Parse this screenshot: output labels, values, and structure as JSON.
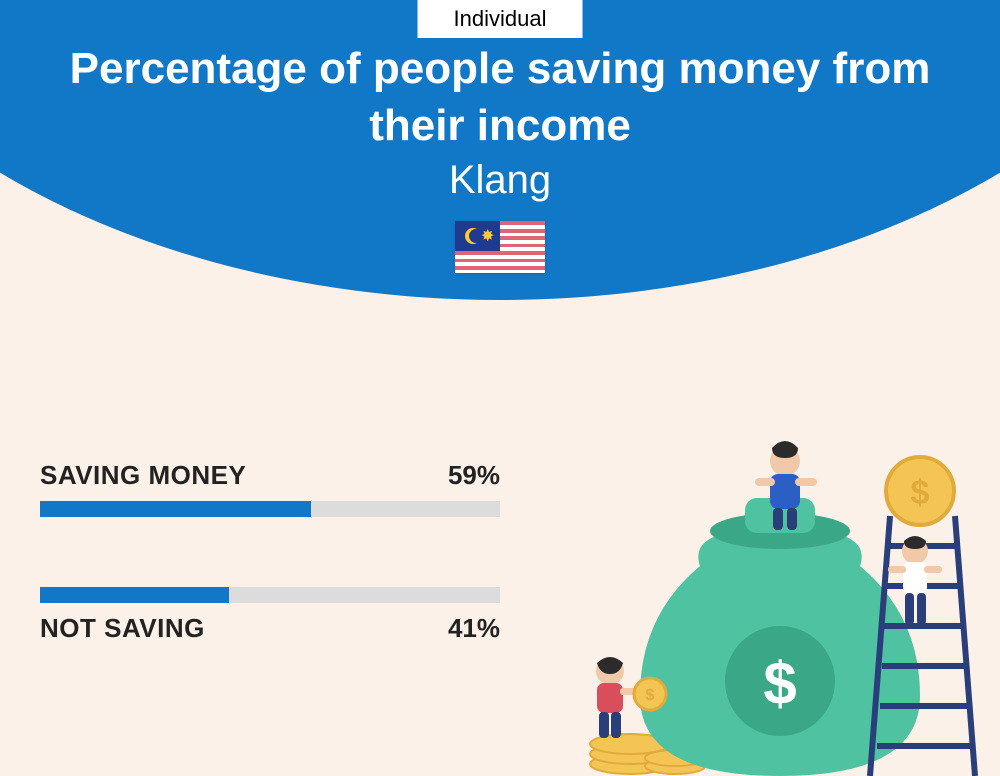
{
  "badge_label": "Individual",
  "title": "Percentage of people saving money from their income",
  "location": "Klang",
  "colors": {
    "header_bg": "#1178c7",
    "page_bg": "#fbf1e9",
    "bar_fill": "#1178c7",
    "bar_track": "#dcdcdc",
    "text_dark": "#222222",
    "badge_bg": "#ffffff"
  },
  "typography": {
    "title_fontsize": 44,
    "title_weight": 700,
    "location_fontsize": 40,
    "label_fontsize": 26
  },
  "bars": [
    {
      "label": "SAVING MONEY",
      "percent": 59,
      "label_position": "above"
    },
    {
      "label": "NOT SAVING",
      "percent": 41,
      "label_position": "below"
    }
  ],
  "bar_style": {
    "track_height": 16,
    "track_color": "#dcdcdc",
    "fill_color": "#1178c7"
  },
  "flag": {
    "stripe_color": "#e06377",
    "canton_color": "#203a8f",
    "accent_color": "#ffcc29"
  },
  "illustration": {
    "bag_color": "#4fc2a2",
    "bag_dark": "#3aa887",
    "coin_color": "#f4c455",
    "coin_edge": "#e0ab3a",
    "ladder_color": "#2a3f7a",
    "skin": "#f2c9a8",
    "hair": "#2b2b2b",
    "shirt1": "#2b5fc4",
    "pants1": "#2a3f7a",
    "shirt2": "#ffffff",
    "shirt3": "#d84e5a"
  }
}
